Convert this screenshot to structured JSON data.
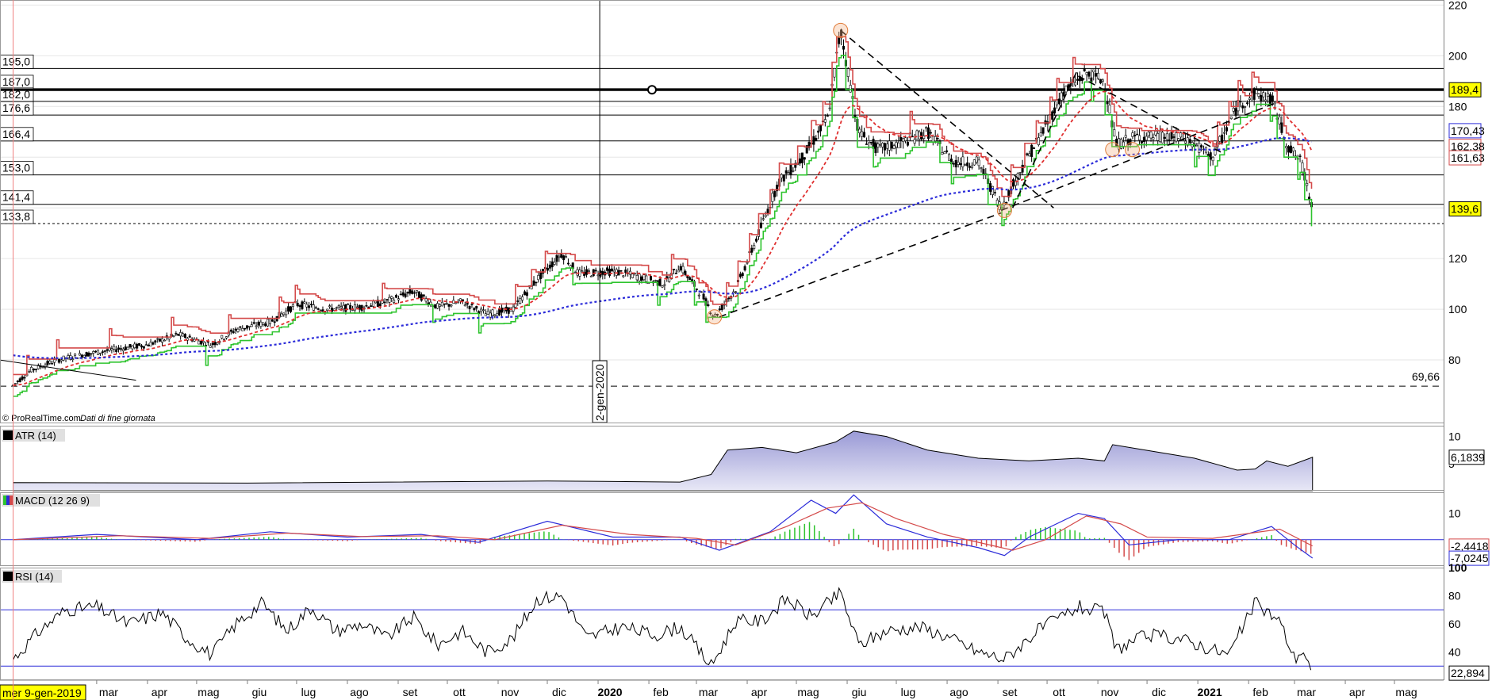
{
  "chart_data": [
    {
      "type": "candlestick",
      "panel": "price",
      "source_label": "© ProRealTime.com",
      "source_note": "Dati di fine giornata",
      "x_range": [
        "2019-01-01",
        "2021-05-31"
      ],
      "ylim": [
        55,
        222
      ],
      "y_ticks": [
        80,
        100,
        120,
        140,
        160,
        180,
        200,
        220
      ],
      "y_tick_labels": [
        "80",
        "100",
        "120",
        "140",
        "160",
        "180",
        "200",
        "220"
      ],
      "current_price": "139,6",
      "right_badges": [
        {
          "label": "189,4",
          "value": 189.4,
          "color": "#ffff00"
        },
        {
          "label": "170,43",
          "value": 170.43,
          "color": "#2b2bd9"
        },
        {
          "label": "162,38",
          "value": 162.38,
          "color": "#d44a4a"
        },
        {
          "label": "161,63",
          "value": 161.63,
          "color": "#d44a4a"
        },
        {
          "label": "139,6",
          "value": 139.6,
          "color": "#ffff00"
        }
      ],
      "left_levels": [
        {
          "label": "195,0",
          "value": 195.0
        },
        {
          "label": "187,0",
          "value": 187.0
        },
        {
          "label": "182,0",
          "value": 182.0
        },
        {
          "label": "176,6",
          "value": 176.6
        },
        {
          "label": "166,4",
          "value": 166.4
        },
        {
          "label": "153,0",
          "value": 153.0
        },
        {
          "label": "141,4",
          "value": 141.4
        },
        {
          "label": "133,8",
          "value": 133.8
        }
      ],
      "support_line": {
        "label": "69,66",
        "value": 69.66
      },
      "vertical_marker": {
        "label": "2-gen-2020",
        "date": "2020-01-02"
      },
      "cursor_date": "mer 9-gen-2019",
      "x_tick_labels": [
        "mar",
        "apr",
        "mag",
        "giu",
        "lug",
        "ago",
        "set",
        "ott",
        "nov",
        "dic",
        "2020",
        "feb",
        "mar",
        "apr",
        "mag",
        "giu",
        "lug",
        "ago",
        "set",
        "ott",
        "nov",
        "dic",
        "2021",
        "feb",
        "mar",
        "apr",
        "mag"
      ],
      "close_series": [
        [
          "2019-01-09",
          70
        ],
        [
          "2019-01-20",
          76
        ],
        [
          "2019-02-05",
          80
        ],
        [
          "2019-02-20",
          82
        ],
        [
          "2019-03-10",
          84
        ],
        [
          "2019-04-01",
          86
        ],
        [
          "2019-04-20",
          90
        ],
        [
          "2019-05-10",
          86
        ],
        [
          "2019-05-25",
          92
        ],
        [
          "2019-06-15",
          95
        ],
        [
          "2019-07-01",
          102
        ],
        [
          "2019-07-20",
          100
        ],
        [
          "2019-08-10",
          101
        ],
        [
          "2019-08-25",
          103
        ],
        [
          "2019-09-10",
          107
        ],
        [
          "2019-09-25",
          101
        ],
        [
          "2019-10-10",
          103
        ],
        [
          "2019-10-25",
          98
        ],
        [
          "2019-11-10",
          100
        ],
        [
          "2019-11-25",
          112
        ],
        [
          "2019-12-10",
          122
        ],
        [
          "2019-12-20",
          114
        ],
        [
          "2020-01-10",
          115
        ],
        [
          "2020-01-25",
          113
        ],
        [
          "2020-02-10",
          110
        ],
        [
          "2020-02-20",
          117
        ],
        [
          "2020-03-05",
          105
        ],
        [
          "2020-03-12",
          97
        ],
        [
          "2020-03-25",
          108
        ],
        [
          "2020-04-05",
          125
        ],
        [
          "2020-04-20",
          150
        ],
        [
          "2020-05-05",
          160
        ],
        [
          "2020-05-20",
          175
        ],
        [
          "2020-05-28",
          210
        ],
        [
          "2020-06-08",
          170
        ],
        [
          "2020-06-20",
          163
        ],
        [
          "2020-07-05",
          166
        ],
        [
          "2020-07-20",
          170
        ],
        [
          "2020-08-05",
          158
        ],
        [
          "2020-08-20",
          158
        ],
        [
          "2020-09-03",
          140
        ],
        [
          "2020-09-15",
          155
        ],
        [
          "2020-09-30",
          172
        ],
        [
          "2020-10-10",
          185
        ],
        [
          "2020-10-25",
          193
        ],
        [
          "2020-11-05",
          190
        ],
        [
          "2020-11-12",
          165
        ],
        [
          "2020-11-25",
          168
        ],
        [
          "2020-12-10",
          168
        ],
        [
          "2020-12-25",
          167
        ],
        [
          "2021-01-10",
          160
        ],
        [
          "2021-01-25",
          180
        ],
        [
          "2021-02-05",
          185
        ],
        [
          "2021-02-15",
          183
        ],
        [
          "2021-02-25",
          164
        ],
        [
          "2021-03-05",
          158
        ],
        [
          "2021-03-12",
          140
        ]
      ],
      "series": [
        {
          "name": "",
          "style": "red-stairs",
          "color": "#d44a4a"
        },
        {
          "name": "",
          "style": "green-stairs",
          "color": "#2ec42e"
        },
        {
          "name": "",
          "style": "red-dashed",
          "color": "#e03030"
        },
        {
          "name": "",
          "style": "blue-dotted",
          "color": "#2b2bd9"
        }
      ]
    },
    {
      "type": "area",
      "panel": "atr",
      "title": "ATR (14)",
      "last_value": "6,1839",
      "y_ticks": [
        10,
        5
      ],
      "y_tick_labels": [
        "10",
        "5"
      ],
      "ylim": [
        0,
        12
      ],
      "points": [
        [
          "2019-01-09",
          1.5
        ],
        [
          "2019-06-01",
          1.4
        ],
        [
          "2019-12-01",
          1.8
        ],
        [
          "2020-02-20",
          1.6
        ],
        [
          "2020-03-10",
          3.0
        ],
        [
          "2020-03-20",
          7.5
        ],
        [
          "2020-04-10",
          8.0
        ],
        [
          "2020-05-01",
          7.0
        ],
        [
          "2020-05-25",
          9.0
        ],
        [
          "2020-06-05",
          11.0
        ],
        [
          "2020-06-25",
          10.0
        ],
        [
          "2020-07-20",
          7.5
        ],
        [
          "2020-08-20",
          6.0
        ],
        [
          "2020-09-20",
          5.5
        ],
        [
          "2020-10-20",
          6.0
        ],
        [
          "2020-11-05",
          5.5
        ],
        [
          "2020-11-10",
          8.5
        ],
        [
          "2020-11-30",
          7.5
        ],
        [
          "2020-12-30",
          6.0
        ],
        [
          "2021-01-25",
          3.8
        ],
        [
          "2021-02-05",
          4.0
        ],
        [
          "2021-02-12",
          5.5
        ],
        [
          "2021-02-25",
          4.5
        ],
        [
          "2021-03-12",
          6.18
        ]
      ]
    },
    {
      "type": "line",
      "panel": "macd",
      "title": "MACD (12 26 9)",
      "last_values": [
        "-2,4418",
        "-7,0245"
      ],
      "y_ticks": [
        10
      ],
      "y_tick_labels": [
        "10"
      ],
      "ylim": [
        -10,
        18
      ],
      "macd": [
        [
          "2019-01-09",
          0
        ],
        [
          "2019-03-01",
          2
        ],
        [
          "2019-05-01",
          0
        ],
        [
          "2019-06-15",
          3
        ],
        [
          "2019-08-01",
          1
        ],
        [
          "2019-09-15",
          2
        ],
        [
          "2019-10-20",
          -1
        ],
        [
          "2019-12-01",
          7
        ],
        [
          "2020-01-10",
          1
        ],
        [
          "2020-02-20",
          1
        ],
        [
          "2020-03-15",
          -4
        ],
        [
          "2020-04-15",
          3
        ],
        [
          "2020-05-10",
          15
        ],
        [
          "2020-05-25",
          10
        ],
        [
          "2020-06-05",
          17
        ],
        [
          "2020-06-25",
          6
        ],
        [
          "2020-07-20",
          1
        ],
        [
          "2020-08-20",
          -3
        ],
        [
          "2020-09-05",
          -6
        ],
        [
          "2020-09-20",
          1
        ],
        [
          "2020-10-20",
          10
        ],
        [
          "2020-11-05",
          8
        ],
        [
          "2020-11-20",
          -2
        ],
        [
          "2020-12-20",
          0
        ],
        [
          "2021-01-20",
          0
        ],
        [
          "2021-02-15",
          5
        ],
        [
          "2021-03-01",
          -2
        ],
        [
          "2021-03-12",
          -7
        ]
      ],
      "signal": [
        [
          "2019-01-09",
          0
        ],
        [
          "2019-03-15",
          1.5
        ],
        [
          "2019-05-10",
          0.5
        ],
        [
          "2019-06-25",
          2.5
        ],
        [
          "2019-08-10",
          1.2
        ],
        [
          "2019-09-25",
          1.5
        ],
        [
          "2019-10-30",
          0
        ],
        [
          "2019-12-10",
          5.5
        ],
        [
          "2020-01-20",
          2
        ],
        [
          "2020-03-01",
          0.5
        ],
        [
          "2020-03-25",
          -2
        ],
        [
          "2020-04-25",
          5
        ],
        [
          "2020-05-20",
          12
        ],
        [
          "2020-06-10",
          14
        ],
        [
          "2020-07-01",
          8
        ],
        [
          "2020-07-30",
          2
        ],
        [
          "2020-09-10",
          -4
        ],
        [
          "2020-09-30",
          0
        ],
        [
          "2020-10-25",
          9
        ],
        [
          "2020-11-15",
          6
        ],
        [
          "2020-12-01",
          1
        ],
        [
          "2021-01-10",
          0.5
        ],
        [
          "2021-02-20",
          4
        ],
        [
          "2021-03-12",
          -2.4
        ]
      ]
    },
    {
      "type": "line",
      "panel": "rsi",
      "title": "RSI (14)",
      "last_value": "22,894",
      "y_ticks": [
        100,
        80,
        60,
        40
      ],
      "y_tick_labels": [
        "100",
        "80",
        "60",
        "40"
      ],
      "ylim": [
        20,
        100
      ],
      "bands": [
        70,
        30
      ],
      "points": [
        [
          "2019-01-09",
          35
        ],
        [
          "2019-01-25",
          55
        ],
        [
          "2019-02-10",
          70
        ],
        [
          "2019-03-01",
          72
        ],
        [
          "2019-03-20",
          60
        ],
        [
          "2019-04-10",
          68
        ],
        [
          "2019-04-25",
          50
        ],
        [
          "2019-05-10",
          38
        ],
        [
          "2019-05-25",
          60
        ],
        [
          "2019-06-10",
          75
        ],
        [
          "2019-06-25",
          55
        ],
        [
          "2019-07-10",
          72
        ],
        [
          "2019-07-25",
          55
        ],
        [
          "2019-08-10",
          60
        ],
        [
          "2019-08-25",
          50
        ],
        [
          "2019-09-10",
          65
        ],
        [
          "2019-09-25",
          45
        ],
        [
          "2019-10-10",
          55
        ],
        [
          "2019-10-25",
          40
        ],
        [
          "2019-11-10",
          50
        ],
        [
          "2019-11-25",
          78
        ],
        [
          "2019-12-10",
          80
        ],
        [
          "2019-12-25",
          50
        ],
        [
          "2020-01-15",
          58
        ],
        [
          "2020-02-05",
          52
        ],
        [
          "2020-02-20",
          58
        ],
        [
          "2020-03-10",
          30
        ],
        [
          "2020-03-25",
          62
        ],
        [
          "2020-04-10",
          62
        ],
        [
          "2020-04-25",
          78
        ],
        [
          "2020-05-10",
          65
        ],
        [
          "2020-05-28",
          82
        ],
        [
          "2020-06-08",
          45
        ],
        [
          "2020-06-25",
          55
        ],
        [
          "2020-07-15",
          58
        ],
        [
          "2020-07-30",
          52
        ],
        [
          "2020-08-20",
          40
        ],
        [
          "2020-09-05",
          35
        ],
        [
          "2020-09-25",
          55
        ],
        [
          "2020-10-20",
          72
        ],
        [
          "2020-11-05",
          68
        ],
        [
          "2020-11-12",
          42
        ],
        [
          "2020-12-01",
          52
        ],
        [
          "2020-12-20",
          50
        ],
        [
          "2021-01-20",
          38
        ],
        [
          "2021-02-05",
          75
        ],
        [
          "2021-02-20",
          62
        ],
        [
          "2021-03-01",
          35
        ],
        [
          "2021-03-06",
          42
        ],
        [
          "2021-03-12",
          22.9
        ]
      ]
    }
  ]
}
